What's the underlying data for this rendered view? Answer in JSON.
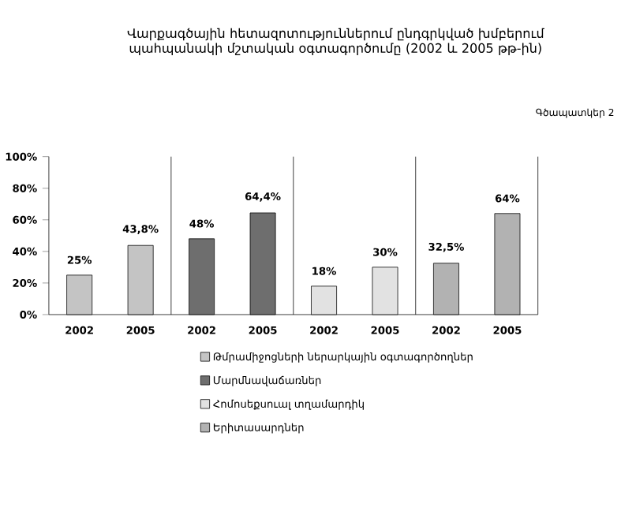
{
  "chart_data": {
    "type": "bar",
    "title": "Վարքագծային հետազոտություններում ընդգրկված խմբերում պահպանակի մշտական օգտագործումը (2002 և 2005 թթ-ին)",
    "annotations": [
      "Գծապատկեր 2"
    ],
    "categories": [
      "2002",
      "2005",
      "2002",
      "2005",
      "2002",
      "2005",
      "2002",
      "2005"
    ],
    "series": [
      {
        "name": "Թմրամիջոցների ներարկային օգտագործողներ",
        "color": "#c4c4c4",
        "values": [
          25,
          43.8,
          null,
          null,
          null,
          null,
          null,
          null
        ],
        "value_labels": [
          "25%",
          "43,8%",
          null,
          null,
          null,
          null,
          null,
          null
        ]
      },
      {
        "name": "Մարմնավաճառներ",
        "color": "#6e6e6e",
        "values": [
          null,
          null,
          48,
          64.4,
          null,
          null,
          null,
          null
        ],
        "value_labels": [
          null,
          null,
          "48%",
          "64,4%",
          null,
          null,
          null,
          null
        ]
      },
      {
        "name": "Հոմոսեքսուալ տղամարդիկ",
        "color": "#e2e2e2",
        "values": [
          null,
          null,
          null,
          null,
          18,
          30,
          null,
          null
        ],
        "value_labels": [
          null,
          null,
          null,
          null,
          "18%",
          "30%",
          null,
          null
        ]
      },
      {
        "name": "Երիտասարդներ",
        "color": "#b2b2b2",
        "values": [
          null,
          null,
          null,
          null,
          null,
          null,
          32.5,
          64
        ],
        "value_labels": [
          null,
          null,
          null,
          null,
          null,
          null,
          "32,5%",
          "64%"
        ]
      }
    ],
    "ylim": [
      0,
      100
    ],
    "yticks": [
      {
        "value": 0,
        "label": "0%"
      },
      {
        "value": 20,
        "label": "20%"
      },
      {
        "value": 40,
        "label": "40%"
      },
      {
        "value": 60,
        "label": "60%"
      },
      {
        "value": 80,
        "label": "80%"
      },
      {
        "value": 100,
        "label": "100%"
      }
    ],
    "legend": "bottom",
    "grid": false
  }
}
